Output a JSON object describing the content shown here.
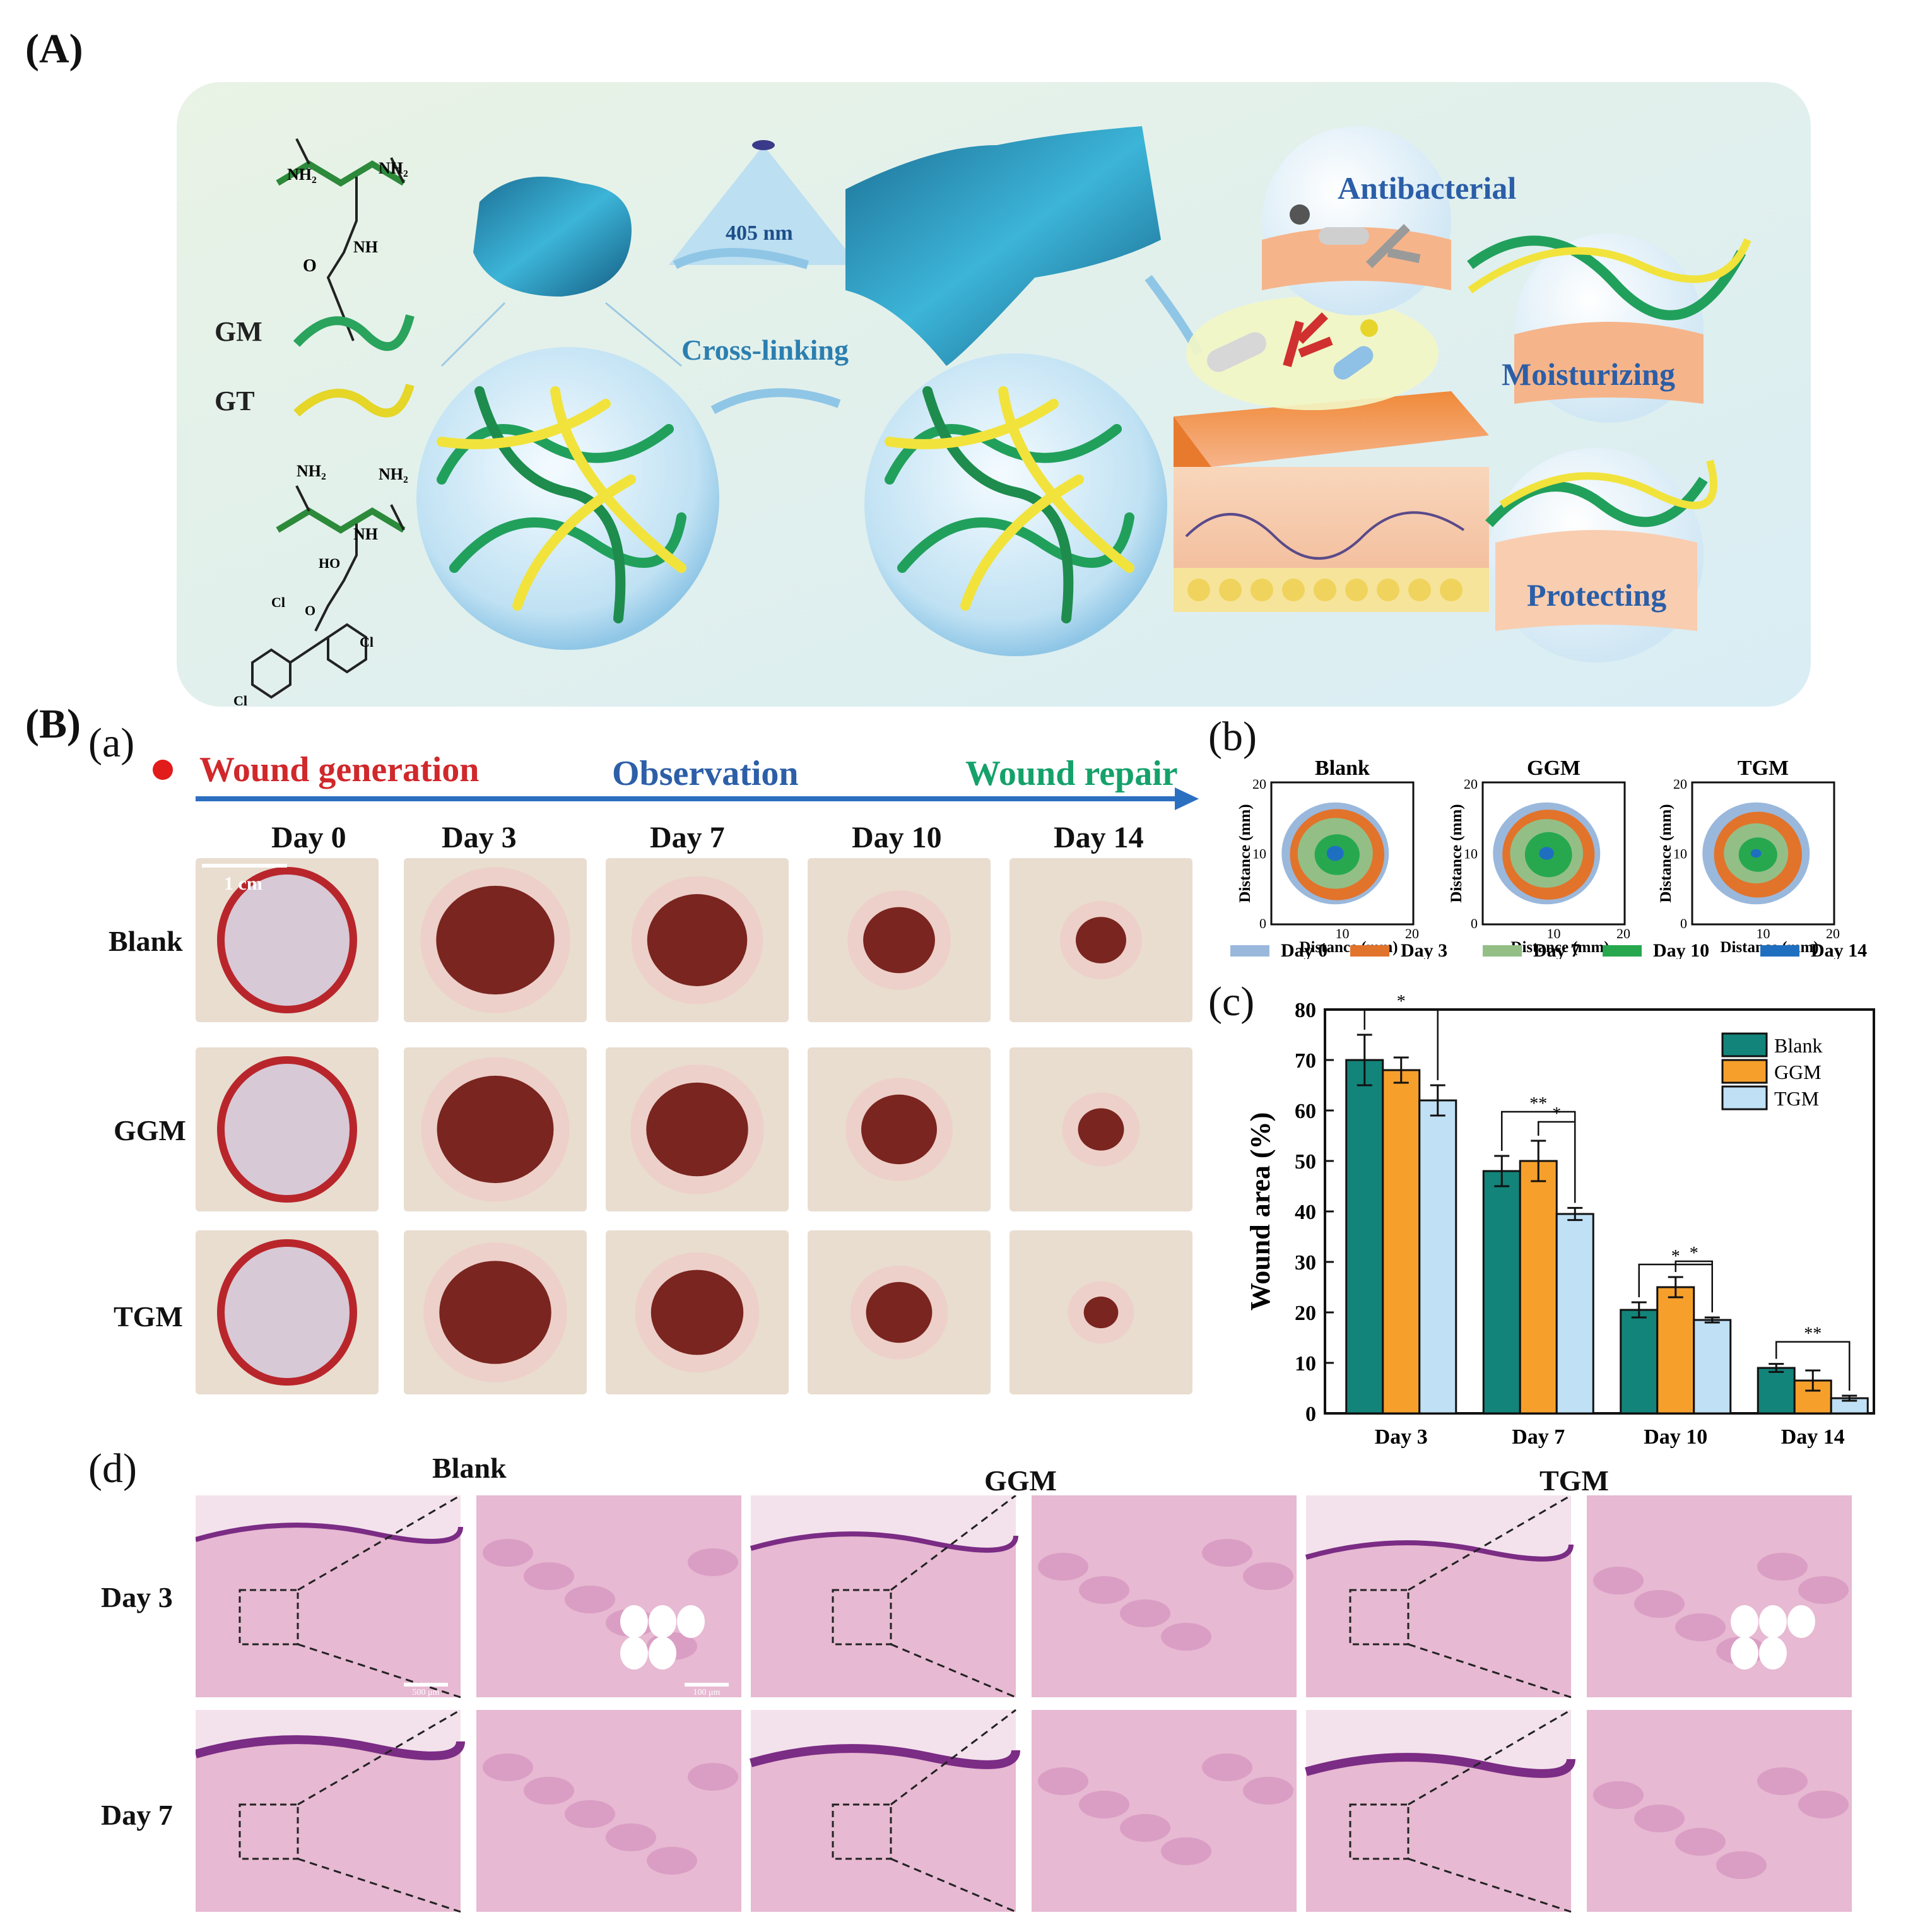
{
  "panels": {
    "A": "(A)",
    "B": "(B)",
    "a": "(a)",
    "b": "(b)",
    "c": "(c)",
    "d": "(d)"
  },
  "scheme": {
    "amine_labels": [
      "NH₂",
      "NH₂",
      "NH",
      "NH₂",
      "NH₂",
      "NH"
    ],
    "atom_labels": [
      "O",
      "HO",
      "O",
      "Cl",
      "Cl",
      "Cl"
    ],
    "polymer_labels": [
      "GM",
      "GT"
    ],
    "light_wavelength": "405 nm",
    "process": "Cross-linking",
    "functions": [
      "Antibacterial",
      "Moisturizing",
      "Protecting"
    ]
  },
  "timeline": {
    "start": "Wound generation",
    "middle": "Observation",
    "end": "Wound repair"
  },
  "photo_grid": {
    "days": [
      "Day 0",
      "Day 3",
      "Day 7",
      "Day 10",
      "Day 14"
    ],
    "groups": [
      "Blank",
      "GGM",
      "TGM"
    ],
    "scale_bar": "1 cm",
    "colors": {
      "skin": "#e9ddd0",
      "wound": "#7a2520",
      "day0": "#d8c9d6"
    },
    "wound_size_fraction": [
      [
        1.0,
        0.7,
        0.48,
        0.22,
        0.09
      ],
      [
        1.0,
        0.68,
        0.5,
        0.25,
        0.07
      ],
      [
        1.0,
        0.62,
        0.4,
        0.18,
        0.03
      ]
    ]
  },
  "traces": {
    "titles": [
      "Blank",
      "GGM",
      "TGM"
    ],
    "axis_label": "Distance (mm)",
    "ticks": [
      "0",
      "10",
      "20"
    ],
    "legend": [
      "Day 0",
      "Day 3",
      "Day 7",
      "Day 10",
      "Day 14"
    ],
    "legend_colors": [
      "#9ab8dc",
      "#e2732b",
      "#93bf86",
      "#27a84f",
      "#1f6fc1"
    ]
  },
  "chart_data": {
    "type": "bar",
    "categories": [
      "Day 3",
      "Day 7",
      "Day 10",
      "Day 14"
    ],
    "series": [
      {
        "name": "Blank",
        "values": [
          70,
          48,
          20.5,
          9
        ],
        "errors": [
          5,
          3,
          1.5,
          0.8
        ],
        "color": "#13847a"
      },
      {
        "name": "GGM",
        "values": [
          68,
          50,
          25,
          6.5
        ],
        "errors": [
          2.5,
          4,
          2,
          2
        ],
        "color": "#f6a02b"
      },
      {
        "name": "TGM",
        "values": [
          62,
          39.5,
          18.5,
          3
        ],
        "errors": [
          3,
          1.2,
          0.5,
          0.5
        ],
        "color": "#bfe0f5"
      }
    ],
    "ylabel": "Wound area (%)",
    "xlabel": "",
    "ylim": [
      0,
      80
    ],
    "yticks": [
      "0",
      "10",
      "20",
      "30",
      "40",
      "50",
      "60",
      "70",
      "80"
    ],
    "significance": [
      "*",
      "**",
      "*",
      "*",
      "*",
      "**"
    ],
    "legend_position": "top-right",
    "grid": false
  },
  "histology": {
    "groups": [
      "Blank",
      "GGM",
      "TGM"
    ],
    "days": [
      "Day 3",
      "Day 7"
    ],
    "scale_labels": [
      "500 μm",
      "100 μm"
    ],
    "colors": {
      "tissue": "#e7b9d2",
      "dense": "#c97fb3",
      "epidermis": "#7b2c84"
    }
  }
}
